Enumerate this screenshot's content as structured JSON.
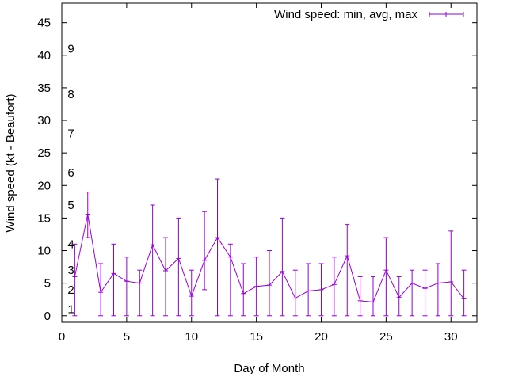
{
  "chart_data": {
    "type": "line",
    "title": "",
    "xlabel": "Day of Month",
    "ylabel": "Wind speed (kt - Beaufort)",
    "xlim": [
      0,
      32
    ],
    "ylim": [
      -1,
      48
    ],
    "xticks": [
      0,
      5,
      10,
      15,
      20,
      25,
      30
    ],
    "yticks": [
      0,
      5,
      10,
      15,
      20,
      25,
      30,
      35,
      40,
      45
    ],
    "beaufort_labels": [
      {
        "label": "1",
        "value": 1
      },
      {
        "label": "2",
        "value": 4
      },
      {
        "label": "3",
        "value": 7
      },
      {
        "label": "4",
        "value": 11
      },
      {
        "label": "5",
        "value": 17
      },
      {
        "label": "6",
        "value": 22
      },
      {
        "label": "7",
        "value": 28
      },
      {
        "label": "8",
        "value": 34
      },
      {
        "label": "9",
        "value": 41
      }
    ],
    "legend": {
      "label": "Wind speed: min, avg, max",
      "position": "top-right"
    },
    "series": [
      {
        "name": "Wind speed: min, avg, max",
        "color": "#9400d3",
        "x": [
          1,
          2,
          3,
          4,
          5,
          6,
          7,
          8,
          9,
          10,
          11,
          12,
          13,
          14,
          15,
          16,
          17,
          18,
          19,
          20,
          21,
          22,
          23,
          24,
          25,
          26,
          27,
          28,
          29,
          30,
          31
        ],
        "avg": [
          6.0,
          15.6,
          3.6,
          6.5,
          5.3,
          5.0,
          10.9,
          6.9,
          8.8,
          3.0,
          8.5,
          12.0,
          9.0,
          3.4,
          4.5,
          4.7,
          6.8,
          2.7,
          3.8,
          4.0,
          4.8,
          9.2,
          2.3,
          2.1,
          7.0,
          2.8,
          5.0,
          4.2,
          5.0,
          5.2,
          2.6
        ],
        "min": [
          0,
          12,
          0,
          0,
          0,
          0,
          0,
          0,
          0,
          0,
          4,
          0,
          0,
          0,
          0,
          0,
          0,
          0,
          0,
          0,
          0,
          0,
          0,
          0,
          0,
          0,
          0,
          0,
          0,
          0,
          0
        ],
        "max": [
          11,
          19,
          8,
          11,
          9,
          7,
          17,
          12,
          15,
          7,
          16,
          21,
          11,
          8,
          9,
          10,
          15,
          7,
          8,
          8,
          9,
          14,
          6,
          6,
          12,
          6,
          7,
          7,
          8,
          13,
          7
        ]
      }
    ]
  }
}
